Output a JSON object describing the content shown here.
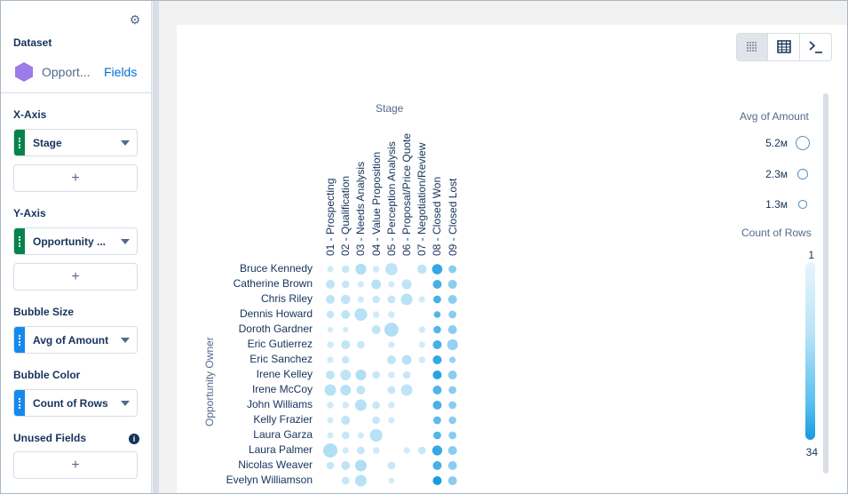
{
  "sidebar": {
    "dataset_label": "Dataset",
    "dataset_name": "Opport...",
    "fields_link": "Fields",
    "x_axis": {
      "label": "X-Axis",
      "field": "Stage",
      "add": "+"
    },
    "y_axis": {
      "label": "Y-Axis",
      "field": "Opportunity ...",
      "add": "+"
    },
    "bubble_size": {
      "label": "Bubble Size",
      "field": "Avg of Amount"
    },
    "bubble_color": {
      "label": "Bubble Color",
      "field": "Count of Rows"
    },
    "unused_fields": {
      "label": "Unused Fields",
      "add": "+"
    },
    "colors": {
      "dimension": "#04844b",
      "measure": "#1589ee",
      "dataset_icon": "#9d7be8",
      "link": "#0070d2"
    }
  },
  "toolbar": {
    "icons": [
      "chart-view-icon",
      "table-view-icon",
      "query-editor-icon"
    ],
    "active": "chart-view-icon"
  },
  "chart_data": {
    "type": "scatter",
    "xlabel": "Stage",
    "ylabel": "Opportunity Owner",
    "x_categories": [
      "01 - Prospecting",
      "02 - Qualification",
      "03 - Needs Analysis",
      "04 - Value Proposition",
      "05 - Perception Analysis",
      "06 - Proposal/Price Quote",
      "07 - Negotiation/Review",
      "08 - Closed Won",
      "09 - Closed Lost"
    ],
    "y_categories": [
      "Bruce Kennedy",
      "Catherine Brown",
      "Chris Riley",
      "Dennis Howard",
      "Doroth Gardner",
      "Eric Gutierrez",
      "Eric Sanchez",
      "Irene Kelley",
      "Irene McCoy",
      "John Williams",
      "Kelly Frazier",
      "Laura Garza",
      "Laura Palmer",
      "Nicolas Weaver",
      "Evelyn Williamson"
    ],
    "size_legend": {
      "title": "Avg of Amount",
      "entries": [
        "5.2м",
        "2.3м",
        "1.3м"
      ],
      "values_m": [
        5.2,
        2.3,
        1.3
      ]
    },
    "color_legend": {
      "title": "Count of Rows",
      "min": "1",
      "max": "34",
      "colors": [
        "#e6f5fc",
        "#169be0"
      ]
    },
    "size_range": [
      0,
      5.2
    ],
    "count_range": [
      1,
      34
    ],
    "points_note": "each point: [x_index, y_index, avg_amount_in_millions, count_of_rows]",
    "points": [
      [
        0,
        0,
        0.5,
        2
      ],
      [
        1,
        0,
        0.9,
        3
      ],
      [
        2,
        0,
        2.6,
        6
      ],
      [
        3,
        0,
        0.6,
        2
      ],
      [
        4,
        0,
        3.6,
        4
      ],
      [
        6,
        0,
        1.6,
        4
      ],
      [
        7,
        0,
        2.2,
        28
      ],
      [
        8,
        0,
        1.0,
        12
      ],
      [
        0,
        1,
        1.5,
        4
      ],
      [
        1,
        1,
        0.9,
        3
      ],
      [
        2,
        1,
        0.5,
        2
      ],
      [
        3,
        1,
        1.8,
        5
      ],
      [
        4,
        1,
        0.5,
        2
      ],
      [
        5,
        1,
        2.0,
        4
      ],
      [
        7,
        1,
        1.5,
        24
      ],
      [
        8,
        1,
        1.5,
        12
      ],
      [
        0,
        2,
        1.5,
        4
      ],
      [
        1,
        2,
        1.7,
        4
      ],
      [
        2,
        2,
        0.5,
        2
      ],
      [
        3,
        2,
        0.9,
        3
      ],
      [
        4,
        2,
        1.1,
        3
      ],
      [
        5,
        2,
        3.0,
        5
      ],
      [
        6,
        2,
        0.5,
        2
      ],
      [
        7,
        2,
        1.0,
        24
      ],
      [
        8,
        2,
        1.5,
        12
      ],
      [
        0,
        3,
        0.9,
        3
      ],
      [
        1,
        3,
        1.5,
        4
      ],
      [
        2,
        3,
        3.8,
        5
      ],
      [
        3,
        3,
        0.6,
        2
      ],
      [
        4,
        3,
        0.6,
        2
      ],
      [
        7,
        3,
        0.6,
        22
      ],
      [
        8,
        3,
        1.0,
        12
      ],
      [
        0,
        4,
        0.3,
        2
      ],
      [
        1,
        4,
        0.3,
        2
      ],
      [
        3,
        4,
        1.5,
        4
      ],
      [
        4,
        4,
        5.0,
        6
      ],
      [
        6,
        4,
        0.6,
        2
      ],
      [
        7,
        4,
        0.9,
        22
      ],
      [
        8,
        4,
        1.5,
        12
      ],
      [
        0,
        5,
        0.6,
        2
      ],
      [
        1,
        5,
        1.5,
        4
      ],
      [
        2,
        5,
        0.9,
        3
      ],
      [
        4,
        5,
        0.5,
        2
      ],
      [
        6,
        5,
        0.5,
        2
      ],
      [
        7,
        5,
        1.5,
        24
      ],
      [
        8,
        5,
        2.6,
        10
      ],
      [
        0,
        6,
        0.5,
        2
      ],
      [
        1,
        6,
        0.9,
        3
      ],
      [
        4,
        6,
        1.5,
        4
      ],
      [
        5,
        6,
        1.8,
        5
      ],
      [
        6,
        6,
        0.6,
        2
      ],
      [
        7,
        6,
        1.5,
        28
      ],
      [
        8,
        6,
        0.5,
        10
      ],
      [
        0,
        7,
        1.5,
        4
      ],
      [
        1,
        7,
        2.5,
        4
      ],
      [
        2,
        7,
        2.5,
        6
      ],
      [
        3,
        7,
        0.9,
        3
      ],
      [
        4,
        7,
        0.6,
        2
      ],
      [
        5,
        7,
        0.9,
        3
      ],
      [
        7,
        7,
        1.5,
        30
      ],
      [
        8,
        7,
        1.5,
        12
      ],
      [
        0,
        8,
        3.0,
        5
      ],
      [
        1,
        8,
        2.5,
        5
      ],
      [
        2,
        8,
        1.5,
        4
      ],
      [
        4,
        8,
        1.0,
        3
      ],
      [
        5,
        8,
        3.0,
        4
      ],
      [
        7,
        8,
        1.5,
        22
      ],
      [
        8,
        8,
        1.0,
        12
      ],
      [
        0,
        9,
        0.6,
        2
      ],
      [
        1,
        9,
        0.6,
        2
      ],
      [
        2,
        9,
        3.0,
        5
      ],
      [
        3,
        9,
        0.9,
        3
      ],
      [
        4,
        9,
        0.6,
        2
      ],
      [
        7,
        9,
        1.5,
        24
      ],
      [
        8,
        9,
        1.0,
        12
      ],
      [
        0,
        10,
        0.5,
        2
      ],
      [
        1,
        10,
        1.5,
        4
      ],
      [
        3,
        10,
        1.0,
        3
      ],
      [
        4,
        10,
        0.5,
        2
      ],
      [
        7,
        10,
        1.0,
        20
      ],
      [
        8,
        10,
        0.9,
        12
      ],
      [
        0,
        11,
        0.5,
        2
      ],
      [
        1,
        11,
        1.0,
        3
      ],
      [
        2,
        11,
        0.5,
        2
      ],
      [
        3,
        11,
        3.8,
        5
      ],
      [
        7,
        11,
        1.0,
        22
      ],
      [
        8,
        11,
        1.0,
        12
      ],
      [
        0,
        12,
        5.2,
        6
      ],
      [
        1,
        12,
        0.5,
        2
      ],
      [
        2,
        12,
        1.0,
        3
      ],
      [
        3,
        12,
        0.6,
        2
      ],
      [
        5,
        12,
        0.5,
        2
      ],
      [
        6,
        12,
        0.9,
        3
      ],
      [
        7,
        12,
        2.0,
        28
      ],
      [
        8,
        12,
        1.5,
        12
      ],
      [
        0,
        13,
        0.9,
        3
      ],
      [
        1,
        13,
        1.5,
        4
      ],
      [
        2,
        13,
        3.0,
        6
      ],
      [
        4,
        13,
        1.0,
        3
      ],
      [
        7,
        13,
        1.5,
        24
      ],
      [
        8,
        13,
        1.5,
        12
      ],
      [
        1,
        14,
        1.0,
        3
      ],
      [
        2,
        14,
        3.0,
        5
      ],
      [
        4,
        14,
        0.4,
        2
      ],
      [
        7,
        14,
        1.5,
        34
      ],
      [
        8,
        14,
        1.5,
        12
      ]
    ]
  }
}
